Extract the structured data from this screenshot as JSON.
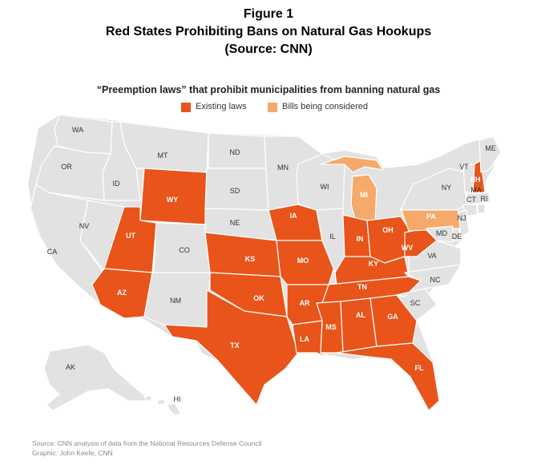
{
  "figure": {
    "line1": "Figure 1",
    "line2": "Red States Prohibiting Bans on Natural Gas Hookups",
    "line3": "(Source: CNN)"
  },
  "map_title": "“Preemption laws” that prohibit municipalities from banning natural gas",
  "legend": [
    {
      "label": "Existing laws",
      "color": "#e8541a"
    },
    {
      "label": "Bills being considered",
      "color": "#f5a96a"
    }
  ],
  "colors": {
    "existing": "#e8541a",
    "considered": "#f5a96a",
    "none": "#e2e2e2"
  },
  "states": {
    "WA": "none",
    "OR": "none",
    "CA": "none",
    "NV": "none",
    "ID": "none",
    "MT": "none",
    "WY": "existing",
    "UT": "existing",
    "AZ": "existing",
    "CO": "none",
    "NM": "none",
    "ND": "none",
    "SD": "none",
    "NE": "none",
    "KS": "existing",
    "OK": "existing",
    "TX": "existing",
    "MN": "none",
    "IA": "existing",
    "MO": "existing",
    "AR": "existing",
    "LA": "existing",
    "WI": "none",
    "IL": "none",
    "MI": "considered",
    "IN": "existing",
    "OH": "existing",
    "KY": "existing",
    "TN": "existing",
    "MS": "existing",
    "AL": "existing",
    "GA": "existing",
    "FL": "existing",
    "SC": "none",
    "NC": "none",
    "VA": "none",
    "WV": "existing",
    "PA": "considered",
    "NY": "none",
    "VT": "none",
    "NH": "existing",
    "ME": "none",
    "MA": "none",
    "CT": "none",
    "RI": "none",
    "NJ": "none",
    "DE": "none",
    "MD": "none",
    "AK": "none",
    "HI": "none"
  },
  "source": {
    "line1": "Source: CNN analysis of data from the National Resources Defense Council",
    "line2": "Graphic: John Keefe, CNN"
  }
}
